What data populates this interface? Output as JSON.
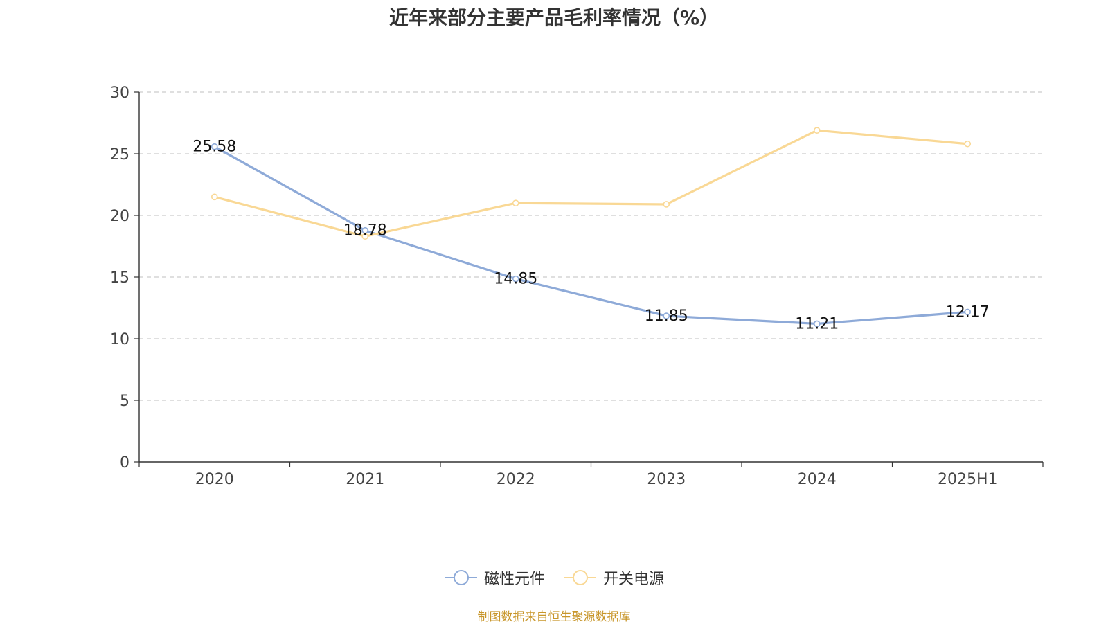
{
  "chart_data": {
    "type": "line",
    "title": "近年来部分主要产品毛利率情况（%）",
    "categories": [
      "2020",
      "2021",
      "2022",
      "2023",
      "2024",
      "2025H1"
    ],
    "ylim": [
      0,
      30
    ],
    "yticks": [
      0,
      5,
      10,
      15,
      20,
      25,
      30
    ],
    "grid": true,
    "legend_position": "bottom",
    "series": [
      {
        "name": "磁性元件",
        "color": "#8eaad8",
        "values": [
          25.58,
          18.78,
          14.85,
          11.85,
          11.21,
          12.17
        ],
        "labels": [
          "25.58",
          "18.78",
          "14.85",
          "11.85",
          "11.21",
          "12.17"
        ]
      },
      {
        "name": "开关电源",
        "color": "#f9d895",
        "values": [
          21.5,
          18.3,
          21.0,
          20.9,
          26.9,
          25.8
        ]
      }
    ],
    "source": "制图数据来自恒生聚源数据库"
  }
}
